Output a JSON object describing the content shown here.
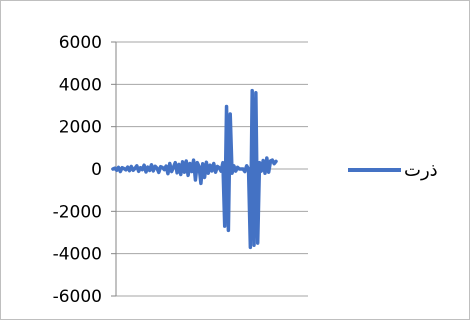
{
  "chart_data": {
    "type": "line",
    "title": "ذرت",
    "xlabel": "",
    "ylabel": "",
    "ylim": [
      -6000,
      6000
    ],
    "yticks": [
      "6000",
      "4000",
      "2000",
      "0",
      "-2000",
      "-4000",
      "-6000"
    ],
    "ytick_values": [
      6000,
      4000,
      2000,
      0,
      -2000,
      -4000,
      -6000
    ],
    "grid": "horizontal",
    "legend_position": "right",
    "series": [
      {
        "name": "ذرت",
        "color": "#4472c4",
        "y": [
          0,
          40,
          -60,
          80,
          -120,
          60,
          20,
          -40,
          90,
          -80,
          120,
          -60,
          30,
          150,
          -110,
          60,
          -30,
          180,
          -140,
          90,
          -70,
          200,
          -90,
          130,
          40,
          -160,
          110,
          70,
          -30,
          140,
          -220,
          260,
          -120,
          80,
          300,
          -180,
          220,
          -260,
          340,
          -150,
          380,
          -300,
          260,
          -120,
          420,
          -520,
          300,
          120,
          -680,
          250,
          -400,
          320,
          -200,
          180,
          -90,
          260,
          -150,
          120,
          60,
          -100,
          300,
          -2700,
          2950,
          -2900,
          2600,
          -200,
          150,
          -100,
          80,
          0,
          0,
          0,
          -120,
          150,
          0,
          -3700,
          3700,
          -3600,
          3600,
          -3500,
          300,
          -100,
          400,
          -200,
          520,
          -150,
          380,
          420,
          250,
          360
        ]
      }
    ]
  }
}
